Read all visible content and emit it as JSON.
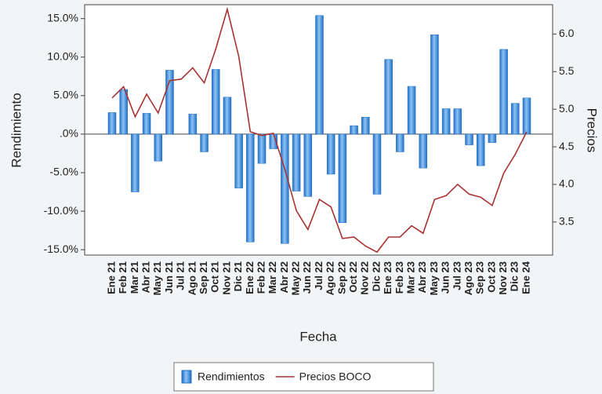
{
  "chart_data": {
    "type": "bar-line",
    "x_label": "Fecha",
    "y_label": "Rendimiento",
    "y2_label": "Precios",
    "categories": [
      "Ene 21",
      "Feb 21",
      "Mar 21",
      "Abr 21",
      "May 21",
      "Jun 21",
      "Jul 21",
      "Ago 21",
      "Sep 21",
      "Oct 21",
      "Nov 21",
      "Dic 21",
      "Ene 22",
      "Feb 22",
      "Mar 22",
      "Abr 22",
      "May 22",
      "Jun 22",
      "Jul 22",
      "Ago 22",
      "Sep 22",
      "Oct 22",
      "Nov 22",
      "Dic 22",
      "Ene 23",
      "Feb 23",
      "Mar 23",
      "Abr 23",
      "May 23",
      "Jun 23",
      "Jul 23",
      "Ago 23",
      "Sep 23",
      "Oct 23",
      "Nov 23",
      "Dic 23",
      "Ene 24"
    ],
    "series": [
      {
        "name": "Rendimientos",
        "type": "bar",
        "color": "#1f6fc5",
        "values": [
          2.8,
          5.8,
          -7.5,
          2.7,
          -3.5,
          8.3,
          0,
          2.6,
          -2.3,
          8.4,
          4.8,
          -7.0,
          -14.0,
          -3.8,
          -1.9,
          -14.2,
          -7.4,
          -8.1,
          15.4,
          -5.2,
          -11.5,
          1.1,
          2.2,
          -7.8,
          9.7,
          -2.3,
          6.2,
          -4.4,
          12.9,
          3.3,
          3.3,
          -1.4,
          -4.1,
          -1.1,
          11.0,
          4.0,
          4.7
        ]
      },
      {
        "name": "Precios BOCO",
        "type": "line",
        "axis": "y2",
        "color": "#a83232",
        "values": [
          5.15,
          5.3,
          4.9,
          5.2,
          4.95,
          5.38,
          5.4,
          5.55,
          5.35,
          5.8,
          6.33,
          5.7,
          4.7,
          4.65,
          4.68,
          4.2,
          3.65,
          3.4,
          3.8,
          3.7,
          3.28,
          3.3,
          3.18,
          3.1,
          3.3,
          3.3,
          3.45,
          3.35,
          3.8,
          3.85,
          4.0,
          3.87,
          3.83,
          3.72,
          4.15,
          4.4,
          4.7
        ]
      }
    ],
    "ylim": [
      -15.7,
      16.8
    ],
    "yticks": [
      {
        "value": 15,
        "label": "15.0%"
      },
      {
        "value": 10,
        "label": "10.0%"
      },
      {
        "value": 5,
        "label": "5.0%"
      },
      {
        "value": 0,
        "label": ".0%"
      },
      {
        "value": -5,
        "label": "-5.0%"
      },
      {
        "value": -10,
        "label": "-10.0%"
      },
      {
        "value": -15,
        "label": "-15.0%"
      }
    ],
    "y2lim": [
      3.06,
      6.39
    ],
    "y2ticks": [
      {
        "value": 6,
        "label": "6.0"
      },
      {
        "value": 5.5,
        "label": "5.5"
      },
      {
        "value": 5,
        "label": "5.0"
      },
      {
        "value": 4.5,
        "label": "4.5"
      },
      {
        "value": 4,
        "label": "4.0"
      },
      {
        "value": 3.5,
        "label": "3.5"
      }
    ],
    "legend": "bottom"
  }
}
